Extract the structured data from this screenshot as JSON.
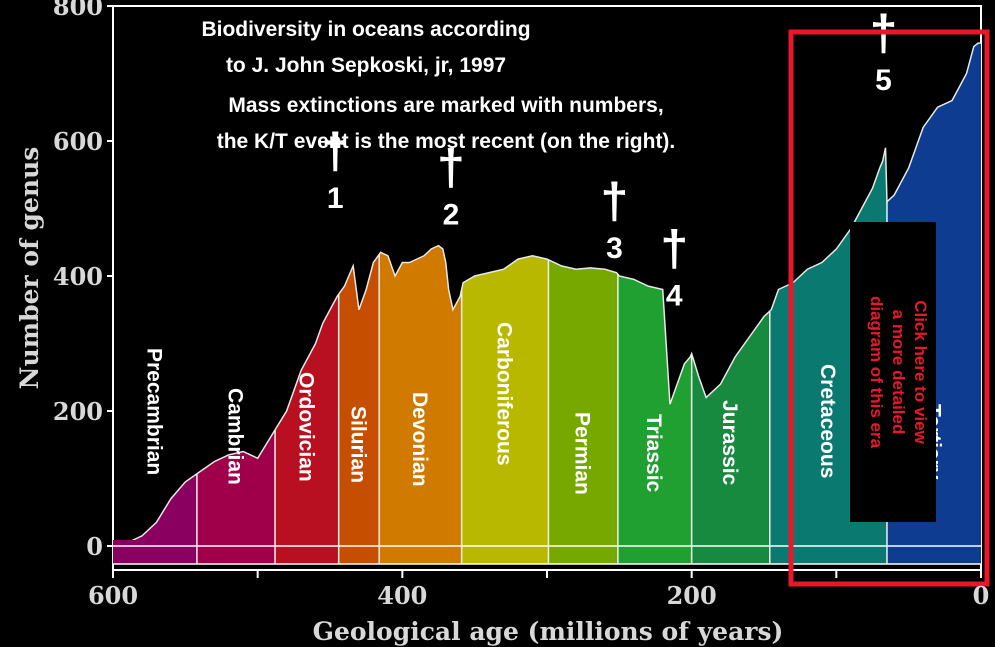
{
  "chart_data": {
    "type": "area",
    "title_lines": [
      "Biodiversity in oceans according",
      "to J. John Sepkoski, jr, 1997",
      "Mass extinctions are marked with numbers,",
      "the K/T event is the most recent (on the right)."
    ],
    "xlabel": "Geological age (millions of years)",
    "ylabel": "Number of genus",
    "xlim": [
      600,
      0
    ],
    "ylim": [
      0,
      800
    ],
    "x_ticks": [
      "600",
      "400",
      "200",
      "0"
    ],
    "y_ticks": [
      "800",
      "600",
      "400",
      "200",
      "0"
    ],
    "series": [
      {
        "x": [
          600,
          590,
          580,
          570,
          560,
          550,
          540,
          530,
          520,
          510,
          500,
          490,
          480,
          470,
          460,
          455,
          450,
          445,
          440,
          435,
          434,
          430,
          425,
          420,
          415,
          410,
          405,
          400,
          395,
          390,
          385,
          380,
          375,
          372,
          370,
          368,
          365,
          360,
          358,
          350,
          340,
          330,
          320,
          310,
          300,
          290,
          280,
          270,
          260,
          252,
          250,
          240,
          230,
          220,
          215,
          210,
          205,
          201,
          200,
          195,
          190,
          180,
          170,
          160,
          150,
          145,
          140,
          130,
          120,
          110,
          100,
          90,
          80,
          75,
          70,
          68,
          66,
          65,
          60,
          50,
          40,
          30,
          20,
          10,
          5,
          2,
          0
        ],
        "values": [
          0,
          5,
          15,
          35,
          70,
          95,
          110,
          125,
          135,
          140,
          130,
          165,
          200,
          260,
          300,
          330,
          350,
          370,
          385,
          410,
          415,
          350,
          380,
          420,
          435,
          430,
          400,
          420,
          420,
          425,
          430,
          440,
          445,
          440,
          420,
          380,
          350,
          370,
          390,
          400,
          405,
          410,
          425,
          430,
          425,
          415,
          410,
          412,
          410,
          405,
          400,
          395,
          385,
          380,
          210,
          240,
          270,
          280,
          285,
          250,
          220,
          240,
          280,
          310,
          340,
          350,
          380,
          390,
          410,
          420,
          440,
          470,
          510,
          530,
          560,
          570,
          590,
          510,
          520,
          560,
          620,
          650,
          660,
          700,
          740,
          745,
          745
        ]
      }
    ],
    "periods": [
      {
        "name": "Precambrian",
        "start": 600,
        "end": 542,
        "color": "#8a0060"
      },
      {
        "name": "Cambrian",
        "start": 542,
        "end": 488,
        "color": "#a0004a"
      },
      {
        "name": "Ordovician",
        "start": 488,
        "end": 444,
        "color": "#b81020"
      },
      {
        "name": "Silurian",
        "start": 444,
        "end": 416,
        "color": "#c54e00"
      },
      {
        "name": "Devonian",
        "start": 416,
        "end": 359,
        "color": "#d07a00"
      },
      {
        "name": "Carboniferous",
        "start": 359,
        "end": 299,
        "color": "#b8b800"
      },
      {
        "name": "Permian",
        "start": 299,
        "end": 251,
        "color": "#77a800"
      },
      {
        "name": "Triassic",
        "start": 251,
        "end": 200,
        "color": "#20a030"
      },
      {
        "name": "Jurassic",
        "start": 200,
        "end": 146,
        "color": "#178a40"
      },
      {
        "name": "Cretaceous",
        "start": 146,
        "end": 65,
        "color": "#0a7a70"
      },
      {
        "name": "Tertiary",
        "start": 65,
        "end": 0,
        "color": "#0d3c90"
      }
    ],
    "extinctions": [
      {
        "label": "1",
        "x": 445,
        "y": 415
      },
      {
        "label": "2",
        "x": 365,
        "y": 420
      },
      {
        "label": "3",
        "x": 252,
        "y": 385
      },
      {
        "label": "4",
        "x": 201,
        "y": 285
      },
      {
        "label": "5",
        "x": 66,
        "y": 590
      }
    ],
    "callout": {
      "text_lines": [
        "Click here to view",
        "a more detailed",
        "diagram of this era"
      ],
      "color": "#e8182a"
    },
    "grid": false,
    "legend": "none"
  }
}
